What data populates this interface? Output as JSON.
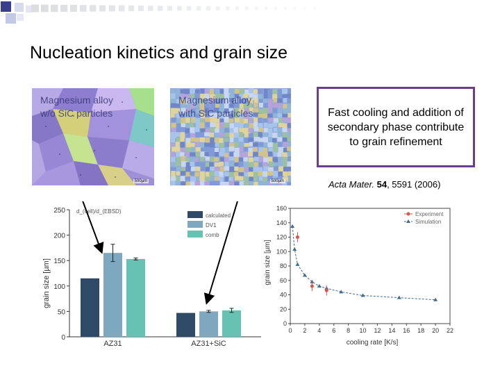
{
  "slide": {
    "title": "Nucleation kinetics and grain size",
    "image_left": {
      "caption": "Magnesium alloy\nw/o SiC particles",
      "scale": "500µm"
    },
    "image_right": {
      "caption": "Magnesium alloy\nwith SiC particles",
      "scale": "500µm"
    },
    "callout": "Fast cooling and addition of secondary phase contribute to grain refinement",
    "reference": {
      "journal": "Acta Mater.",
      "volume": "54",
      "pages": ", 5591 (2006)"
    }
  },
  "colors": {
    "square_dark": "#3a3f8c",
    "square_light": "#c3c8e6",
    "callout_border": "#6a3d8f"
  },
  "chart_data": [
    {
      "type": "bar",
      "ylabel": "grain size [µm]",
      "ylim": [
        0,
        250
      ],
      "yticks": [
        "0",
        "50",
        "100",
        "150",
        "200",
        "250"
      ],
      "categories": [
        "AZ31",
        "AZ31+SiC"
      ],
      "series": [
        {
          "name": "calculated",
          "color": "#2e4a66",
          "values": [
            115,
            47
          ]
        },
        {
          "name": "DV1",
          "color": "#7ea8c0",
          "values": [
            165,
            50
          ]
        },
        {
          "name": "comb",
          "color": "#67c2b4",
          "values": [
            153,
            52
          ]
        }
      ],
      "error_bars": [
        [
          0,
          17,
          2
        ],
        [
          0,
          2,
          4
        ]
      ],
      "legend_position": "top-center",
      "annotation": "d_(cell)/d_(EBSD)"
    },
    {
      "type": "scatter",
      "xlabel": "cooling rate [K/s]",
      "ylabel": "grain size [µm]",
      "xlim": [
        0,
        22
      ],
      "ylim": [
        0,
        160
      ],
      "xticks": [
        "0",
        "2",
        "4",
        "6",
        "8",
        "10",
        "12",
        "14",
        "16",
        "18",
        "20",
        "22"
      ],
      "yticks": [
        "0",
        "20",
        "40",
        "60",
        "80",
        "100",
        "120",
        "140",
        "160"
      ],
      "series": [
        {
          "name": "Experiment",
          "color": "#d9534f",
          "x": [
            1,
            3,
            5
          ],
          "y": [
            120,
            52,
            46
          ]
        },
        {
          "name": "Simulation",
          "color": "#3e6b8a",
          "x": [
            0.3,
            0.6,
            1,
            2,
            3,
            4,
            5,
            7,
            10,
            15,
            20
          ],
          "y": [
            135,
            103,
            82,
            67,
            58,
            52,
            49,
            44,
            39,
            36,
            33
          ]
        }
      ],
      "legend_position": "top-right"
    }
  ]
}
